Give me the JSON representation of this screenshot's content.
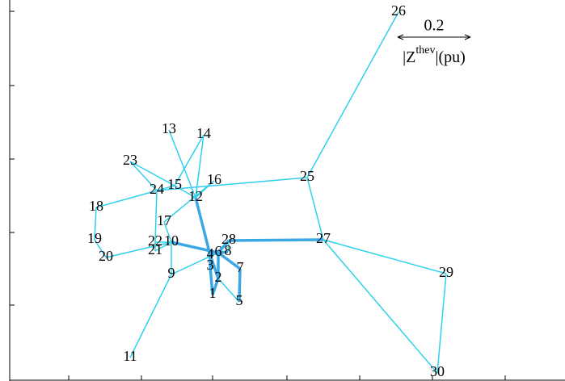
{
  "nodes": [
    {
      "label": "1"
    },
    {
      "label": "2"
    },
    {
      "label": "3"
    },
    {
      "label": "4"
    },
    {
      "label": "5"
    },
    {
      "label": "6"
    },
    {
      "label": "7"
    },
    {
      "label": "8"
    },
    {
      "label": "9"
    },
    {
      "label": "10"
    },
    {
      "label": "11"
    },
    {
      "label": "12"
    },
    {
      "label": "13"
    },
    {
      "label": "14"
    },
    {
      "label": "15"
    },
    {
      "label": "16"
    },
    {
      "label": "17"
    },
    {
      "label": "18"
    },
    {
      "label": "19"
    },
    {
      "label": "20"
    },
    {
      "label": "21"
    },
    {
      "label": "22"
    },
    {
      "label": "23"
    },
    {
      "label": "24"
    },
    {
      "label": "25"
    },
    {
      "label": "26"
    },
    {
      "label": "27"
    },
    {
      "label": "28"
    },
    {
      "label": "29"
    },
    {
      "label": "30"
    }
  ],
  "scale": {
    "value": "0.2",
    "unit_main": "|Z",
    "unit_sup": "thev",
    "unit_suffix": "|(pu)"
  }
}
